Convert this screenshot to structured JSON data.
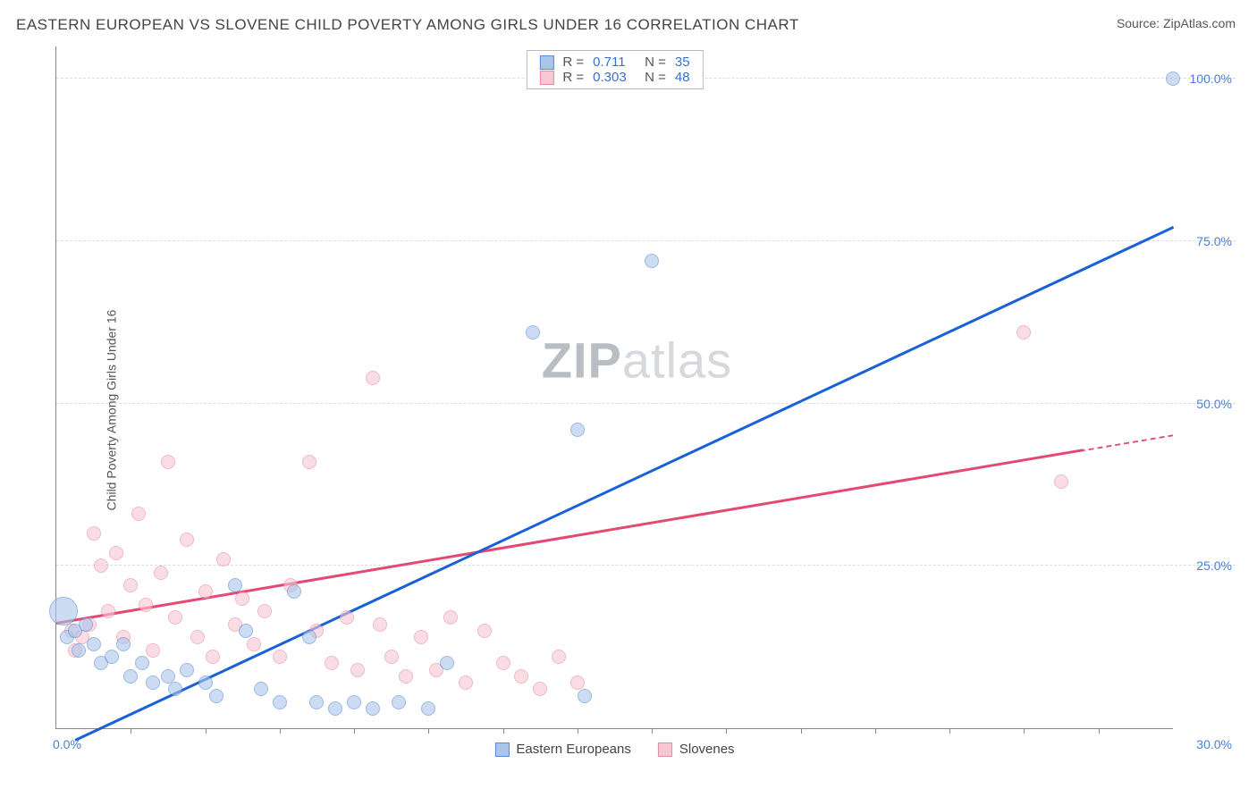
{
  "header": {
    "title": "EASTERN EUROPEAN VS SLOVENE CHILD POVERTY AMONG GIRLS UNDER 16 CORRELATION CHART",
    "source_prefix": "Source: ",
    "source_name": "ZipAtlas.com"
  },
  "chart": {
    "type": "scatter",
    "ylabel": "Child Poverty Among Girls Under 16",
    "xlim": [
      0,
      30
    ],
    "ylim": [
      0,
      105
    ],
    "xtick_step": 2,
    "xtick_labels": {
      "min": "0.0%",
      "max": "30.0%"
    },
    "ytick_labels": [
      {
        "v": 25,
        "text": "25.0%"
      },
      {
        "v": 50,
        "text": "50.0%"
      },
      {
        "v": 75,
        "text": "75.0%"
      },
      {
        "v": 100,
        "text": "100.0%"
      }
    ],
    "background_color": "#ffffff",
    "grid_color": "#dddddd",
    "axis_color": "#888888",
    "tick_label_color": "#4a7fd6",
    "colors": {
      "blue_fill": "#a9c5ec",
      "blue_stroke": "#5a8bd4",
      "pink_fill": "#f7c8d3",
      "pink_stroke": "#e88aa2",
      "blue_line": "#1961d6",
      "pink_line": "#e34a72"
    },
    "marker_radius": 8,
    "marker_radius_big": 16,
    "marker_opacity": 0.6,
    "line_width": 2.5,
    "series_blue": {
      "trend": {
        "x1": 0.5,
        "y1": -2,
        "x2": 30,
        "y2": 77
      },
      "points": [
        {
          "x": 0.2,
          "y": 18,
          "r": 16
        },
        {
          "x": 0.3,
          "y": 14
        },
        {
          "x": 0.5,
          "y": 15
        },
        {
          "x": 0.6,
          "y": 12
        },
        {
          "x": 0.8,
          "y": 16
        },
        {
          "x": 1.0,
          "y": 13
        },
        {
          "x": 1.2,
          "y": 10
        },
        {
          "x": 1.5,
          "y": 11
        },
        {
          "x": 1.8,
          "y": 13
        },
        {
          "x": 2.0,
          "y": 8
        },
        {
          "x": 2.3,
          "y": 10
        },
        {
          "x": 2.6,
          "y": 7
        },
        {
          "x": 3.0,
          "y": 8
        },
        {
          "x": 3.2,
          "y": 6
        },
        {
          "x": 3.5,
          "y": 9
        },
        {
          "x": 4.0,
          "y": 7
        },
        {
          "x": 4.3,
          "y": 5
        },
        {
          "x": 4.8,
          "y": 22
        },
        {
          "x": 5.1,
          "y": 15
        },
        {
          "x": 5.5,
          "y": 6
        },
        {
          "x": 6.0,
          "y": 4
        },
        {
          "x": 6.4,
          "y": 21
        },
        {
          "x": 6.8,
          "y": 14
        },
        {
          "x": 7.0,
          "y": 4
        },
        {
          "x": 7.5,
          "y": 3
        },
        {
          "x": 8.0,
          "y": 4
        },
        {
          "x": 8.5,
          "y": 3
        },
        {
          "x": 9.2,
          "y": 4
        },
        {
          "x": 10.0,
          "y": 3
        },
        {
          "x": 10.5,
          "y": 10
        },
        {
          "x": 12.8,
          "y": 61
        },
        {
          "x": 14.0,
          "y": 46
        },
        {
          "x": 14.2,
          "y": 5
        },
        {
          "x": 16.0,
          "y": 72
        },
        {
          "x": 30.0,
          "y": 100
        }
      ]
    },
    "series_pink": {
      "trend": {
        "x1": 0,
        "y1": 16,
        "x2": 30,
        "y2": 45
      },
      "points": [
        {
          "x": 0.4,
          "y": 15
        },
        {
          "x": 0.5,
          "y": 12
        },
        {
          "x": 0.7,
          "y": 14
        },
        {
          "x": 0.9,
          "y": 16
        },
        {
          "x": 1.0,
          "y": 30
        },
        {
          "x": 1.2,
          "y": 25
        },
        {
          "x": 1.4,
          "y": 18
        },
        {
          "x": 1.6,
          "y": 27
        },
        {
          "x": 1.8,
          "y": 14
        },
        {
          "x": 2.0,
          "y": 22
        },
        {
          "x": 2.2,
          "y": 33
        },
        {
          "x": 2.4,
          "y": 19
        },
        {
          "x": 2.6,
          "y": 12
        },
        {
          "x": 2.8,
          "y": 24
        },
        {
          "x": 3.0,
          "y": 41
        },
        {
          "x": 3.2,
          "y": 17
        },
        {
          "x": 3.5,
          "y": 29
        },
        {
          "x": 3.8,
          "y": 14
        },
        {
          "x": 4.0,
          "y": 21
        },
        {
          "x": 4.2,
          "y": 11
        },
        {
          "x": 4.5,
          "y": 26
        },
        {
          "x": 4.8,
          "y": 16
        },
        {
          "x": 5.0,
          "y": 20
        },
        {
          "x": 5.3,
          "y": 13
        },
        {
          "x": 5.6,
          "y": 18
        },
        {
          "x": 6.0,
          "y": 11
        },
        {
          "x": 6.3,
          "y": 22
        },
        {
          "x": 6.8,
          "y": 41
        },
        {
          "x": 7.0,
          "y": 15
        },
        {
          "x": 7.4,
          "y": 10
        },
        {
          "x": 7.8,
          "y": 17
        },
        {
          "x": 8.1,
          "y": 9
        },
        {
          "x": 8.5,
          "y": 54
        },
        {
          "x": 8.7,
          "y": 16
        },
        {
          "x": 9.0,
          "y": 11
        },
        {
          "x": 9.4,
          "y": 8
        },
        {
          "x": 9.8,
          "y": 14
        },
        {
          "x": 10.2,
          "y": 9
        },
        {
          "x": 10.6,
          "y": 17
        },
        {
          "x": 11.0,
          "y": 7
        },
        {
          "x": 11.5,
          "y": 15
        },
        {
          "x": 12.0,
          "y": 10
        },
        {
          "x": 12.5,
          "y": 8
        },
        {
          "x": 13.0,
          "y": 6
        },
        {
          "x": 13.5,
          "y": 11
        },
        {
          "x": 14.0,
          "y": 7
        },
        {
          "x": 26.0,
          "y": 61
        },
        {
          "x": 27.0,
          "y": 38
        }
      ]
    }
  },
  "legend_top": {
    "rows": [
      {
        "color": "blue",
        "r_label": "R =",
        "r_value": "0.711",
        "n_label": "N =",
        "n_value": "35"
      },
      {
        "color": "pink",
        "r_label": "R =",
        "r_value": "0.303",
        "n_label": "N =",
        "n_value": "48"
      }
    ]
  },
  "legend_bottom": {
    "items": [
      {
        "color": "blue",
        "label": "Eastern Europeans"
      },
      {
        "color": "pink",
        "label": "Slovenes"
      }
    ]
  },
  "watermark": {
    "text_bold": "ZIP",
    "text_light": "atlas",
    "color_bold": "#b9bec4",
    "color_light": "#d5d8dc"
  }
}
